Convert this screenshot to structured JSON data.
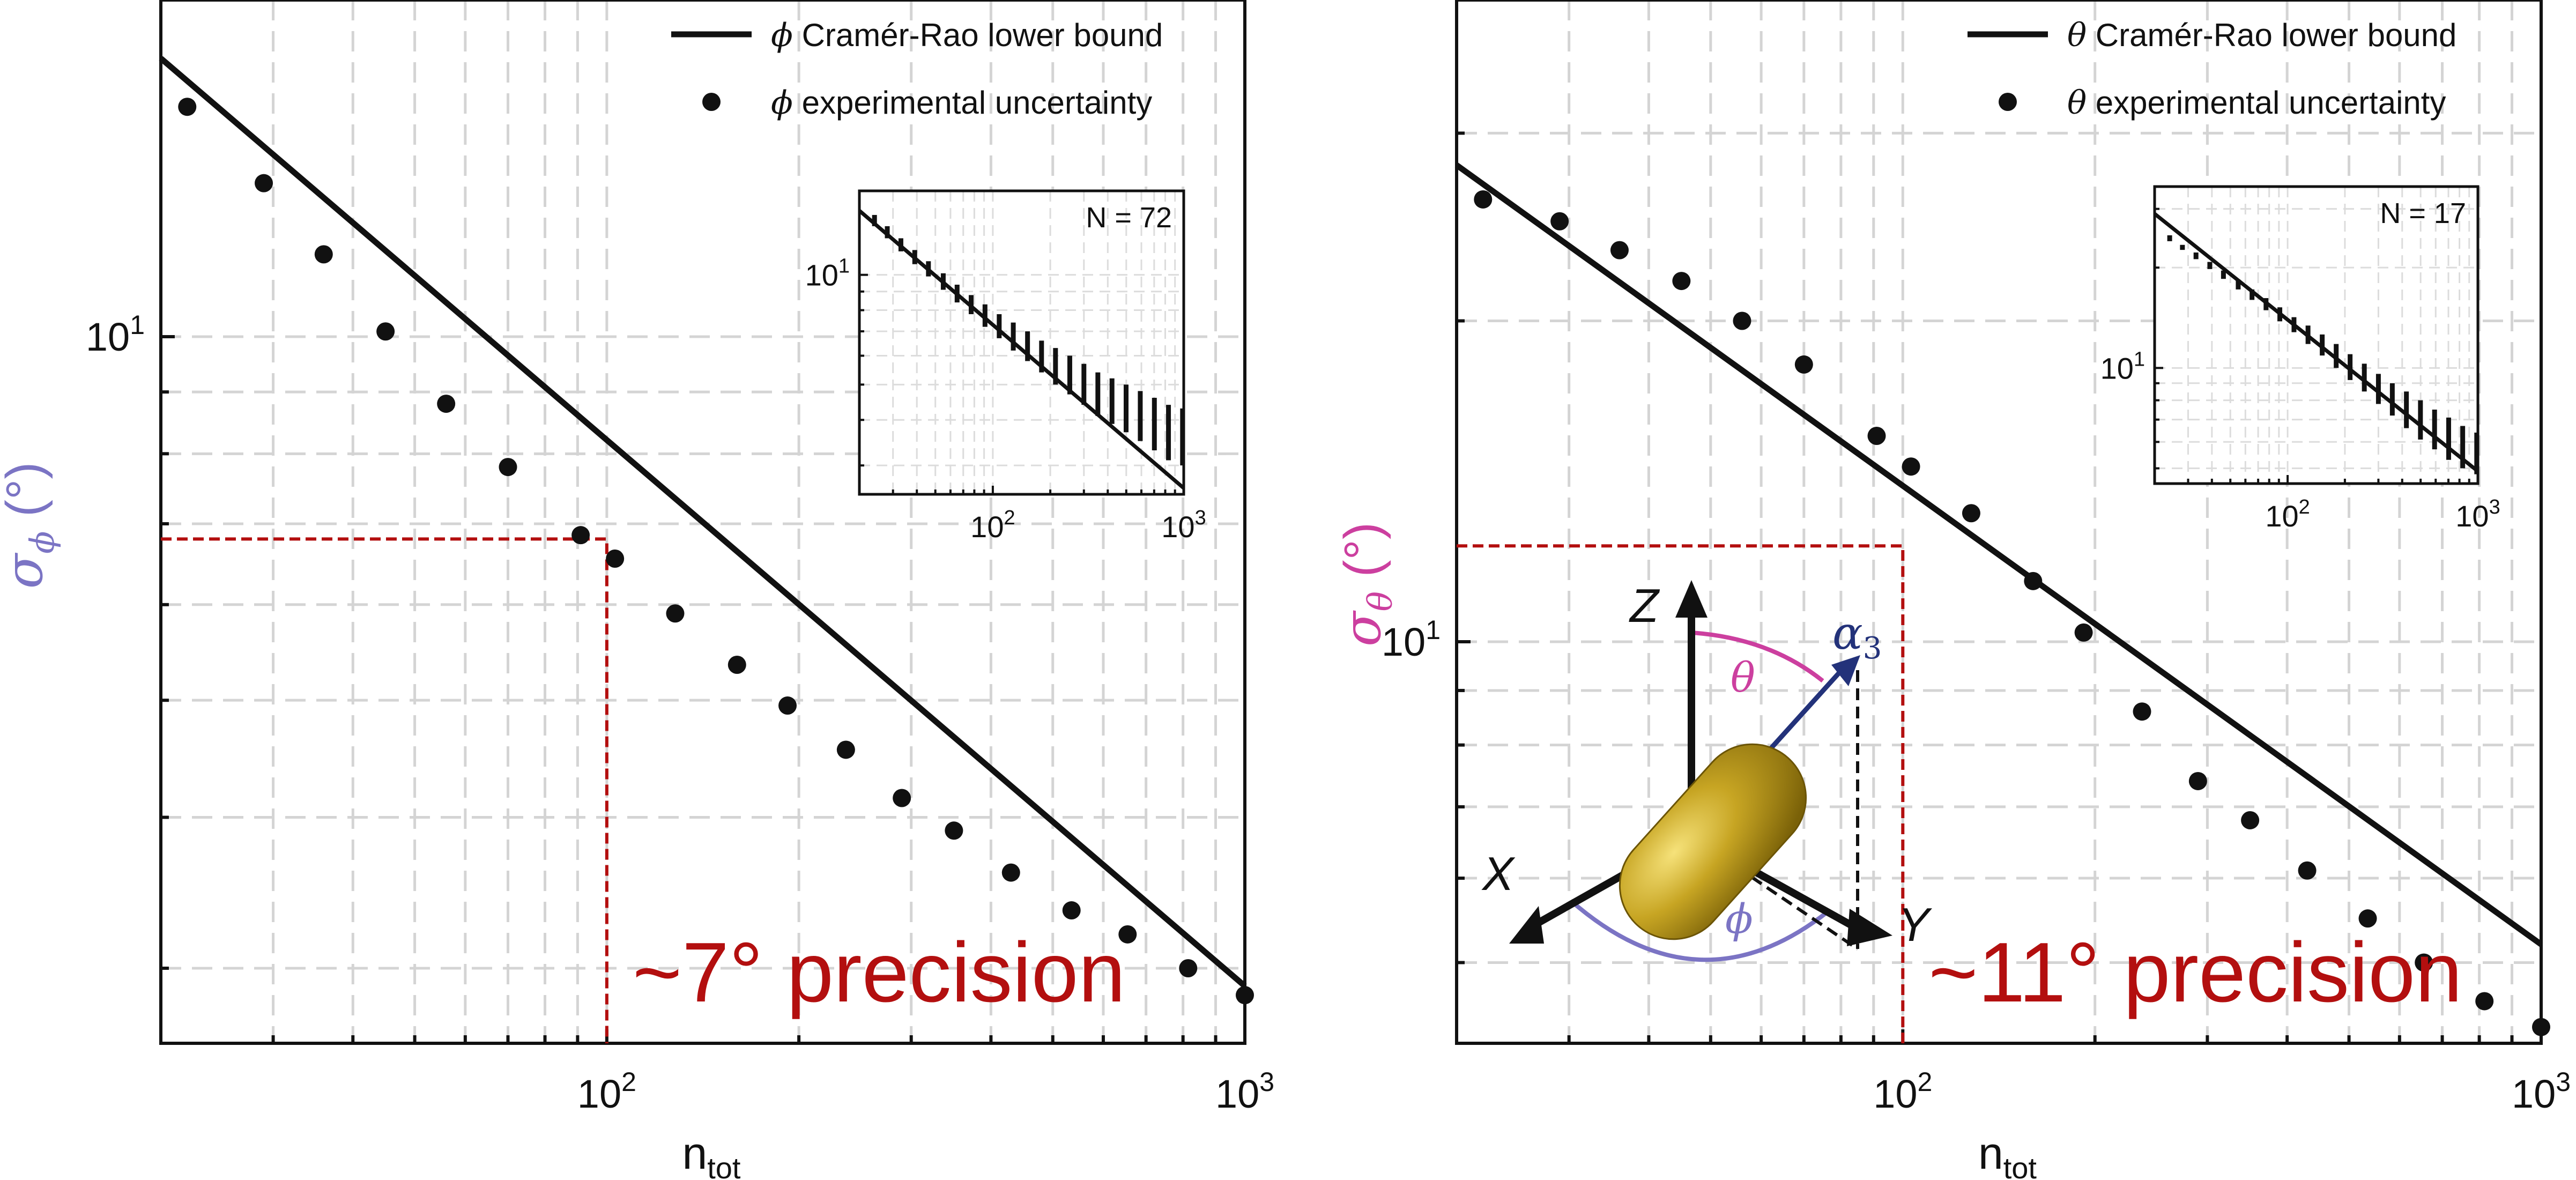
{
  "chart_data": [
    {
      "type": "line",
      "xlabel": "n",
      "xlabel_sub": "tot",
      "ylabel": "σ",
      "ylabel_sub": "ϕ",
      "ylabel_unit": "(°)",
      "ylabel_color": "#7b74c4",
      "xscale": "log",
      "yscale": "log",
      "xlim": [
        20,
        1000
      ],
      "ylim": [
        2.6,
        19
      ],
      "grid": true,
      "legend_position": "top-right",
      "x_ticks": [
        {
          "value": 100,
          "base": "10",
          "exp": "2"
        },
        {
          "value": 1000,
          "base": "10",
          "exp": "3"
        }
      ],
      "y_ticks": [
        {
          "value": 10,
          "base": "10",
          "exp": "1"
        }
      ],
      "series": [
        {
          "name": "ϕ Cramér-Rao lower bound",
          "symbol": "ϕ",
          "label_text": " Cramér-Rao lower bound",
          "kind": "line",
          "x": [
            20,
            1000
          ],
          "y": [
            17.0,
            2.9
          ]
        },
        {
          "name": "ϕ experimental uncertainty",
          "symbol": "ϕ",
          "label_text": " experimental uncertainty",
          "kind": "scatter",
          "x": [
            22,
            29,
            36,
            45,
            56,
            70,
            91,
            103,
            128,
            160,
            192,
            237,
            290,
            350,
            430,
            535,
            655,
            815,
            1000
          ],
          "y": [
            15.5,
            13.4,
            11.7,
            10.1,
            8.8,
            7.8,
            6.85,
            6.55,
            5.9,
            5.35,
            4.95,
            4.55,
            4.15,
            3.9,
            3.6,
            3.35,
            3.2,
            3.0,
            2.85
          ]
        }
      ],
      "annotation": {
        "text": "~7° precision",
        "color": "#b30f0f",
        "x": 100,
        "y": 6.8
      },
      "inset": {
        "label": "N = 72",
        "xlim": [
          20,
          1000
        ],
        "ylim": [
          2.5,
          17
        ],
        "x_ticks": [
          {
            "value": 100,
            "base": "10",
            "exp": "2"
          },
          {
            "value": 1000,
            "base": "10",
            "exp": "3"
          }
        ],
        "y_ticks": [
          {
            "value": 10,
            "base": "10",
            "exp": "1"
          }
        ],
        "bound": {
          "x": [
            20,
            1000
          ],
          "y": [
            15.0,
            2.6
          ]
        },
        "errorbars": [
          {
            "x": 24,
            "low": 13.6,
            "high": 14.6
          },
          {
            "x": 28,
            "low": 12.6,
            "high": 13.6
          },
          {
            "x": 33,
            "low": 11.6,
            "high": 12.6
          },
          {
            "x": 39,
            "low": 10.7,
            "high": 11.7
          },
          {
            "x": 46,
            "low": 9.9,
            "high": 10.9
          },
          {
            "x": 55,
            "low": 9.1,
            "high": 10.1
          },
          {
            "x": 65,
            "low": 8.4,
            "high": 9.4
          },
          {
            "x": 77,
            "low": 7.8,
            "high": 8.8
          },
          {
            "x": 91,
            "low": 7.2,
            "high": 8.3
          },
          {
            "x": 108,
            "low": 6.7,
            "high": 7.8
          },
          {
            "x": 128,
            "low": 6.2,
            "high": 7.4
          },
          {
            "x": 152,
            "low": 5.8,
            "high": 7.0
          },
          {
            "x": 180,
            "low": 5.4,
            "high": 6.6
          },
          {
            "x": 213,
            "low": 5.0,
            "high": 6.3
          },
          {
            "x": 253,
            "low": 4.7,
            "high": 6.0
          },
          {
            "x": 300,
            "low": 4.4,
            "high": 5.7
          },
          {
            "x": 355,
            "low": 4.1,
            "high": 5.4
          },
          {
            "x": 421,
            "low": 3.9,
            "high": 5.2
          },
          {
            "x": 499,
            "low": 3.7,
            "high": 5.0
          },
          {
            "x": 592,
            "low": 3.5,
            "high": 4.8
          },
          {
            "x": 702,
            "low": 3.3,
            "high": 4.6
          },
          {
            "x": 832,
            "low": 3.1,
            "high": 4.4
          },
          {
            "x": 986,
            "low": 3.0,
            "high": 4.3
          }
        ]
      }
    },
    {
      "type": "line",
      "xlabel": "n",
      "xlabel_sub": "tot",
      "ylabel": "σ",
      "ylabel_sub": "θ",
      "ylabel_unit": "(°)",
      "ylabel_color": "#cc3f9f",
      "xscale": "log",
      "yscale": "log",
      "xlim": [
        20,
        1000
      ],
      "ylim": [
        4.2,
        40
      ],
      "grid": true,
      "legend_position": "top-right",
      "x_ticks": [
        {
          "value": 100,
          "base": "10",
          "exp": "2"
        },
        {
          "value": 1000,
          "base": "10",
          "exp": "3"
        }
      ],
      "y_ticks": [
        {
          "value": 10,
          "base": "10",
          "exp": "1"
        }
      ],
      "series": [
        {
          "name": "θ Cramér-Rao lower bound",
          "symbol": "θ",
          "label_text": " Cramér-Rao lower bound",
          "kind": "line",
          "x": [
            20,
            1000
          ],
          "y": [
            28.0,
            5.2
          ]
        },
        {
          "name": "θ experimental uncertainty",
          "symbol": "θ",
          "label_text": " experimental uncertainty",
          "kind": "scatter",
          "x": [
            22,
            29,
            36,
            45,
            56,
            70,
            91,
            103,
            128,
            160,
            192,
            237,
            290,
            350,
            430,
            535,
            655,
            815,
            1000
          ],
          "y": [
            26.0,
            24.8,
            23.3,
            21.8,
            20.0,
            18.2,
            15.6,
            14.6,
            13.2,
            11.4,
            10.2,
            8.6,
            7.4,
            6.8,
            6.1,
            5.5,
            5.0,
            4.6,
            4.35
          ]
        }
      ],
      "annotation": {
        "text": "~11° precision",
        "color": "#b30f0f",
        "x": 100,
        "y": 12.3
      },
      "schematic": {
        "axis_labels": {
          "z": "Z",
          "x": "X",
          "y": "Y"
        },
        "vector_label": "α",
        "vector_sub": "3",
        "theta_label": "θ",
        "phi_label": "ϕ",
        "rod_color": "#b99a1f",
        "theta_color": "#cc3f9f",
        "phi_color": "#7b74c4",
        "vector_color": "#23327a"
      },
      "inset": {
        "label": "N = 17",
        "xlim": [
          20,
          1000
        ],
        "ylim": [
          4.5,
          35
        ],
        "x_ticks": [
          {
            "value": 100,
            "base": "10",
            "exp": "2"
          },
          {
            "value": 1000,
            "base": "10",
            "exp": "3"
          }
        ],
        "y_ticks": [
          {
            "value": 10,
            "base": "10",
            "exp": "1"
          }
        ],
        "bound": {
          "x": [
            20,
            1000
          ],
          "y": [
            29.0,
            4.9
          ]
        },
        "errorbars": [
          {
            "x": 24,
            "low": 24.0,
            "high": 25.0
          },
          {
            "x": 28,
            "low": 22.6,
            "high": 23.4
          },
          {
            "x": 33,
            "low": 21.2,
            "high": 22.2
          },
          {
            "x": 39,
            "low": 19.8,
            "high": 20.8
          },
          {
            "x": 46,
            "low": 18.5,
            "high": 19.6
          },
          {
            "x": 55,
            "low": 17.2,
            "high": 18.4
          },
          {
            "x": 65,
            "low": 16.0,
            "high": 17.2
          },
          {
            "x": 77,
            "low": 14.9,
            "high": 16.2
          },
          {
            "x": 91,
            "low": 13.8,
            "high": 15.2
          },
          {
            "x": 108,
            "low": 12.8,
            "high": 14.2
          },
          {
            "x": 128,
            "low": 11.8,
            "high": 13.4
          },
          {
            "x": 152,
            "low": 10.9,
            "high": 12.6
          },
          {
            "x": 180,
            "low": 10.0,
            "high": 11.8
          },
          {
            "x": 213,
            "low": 9.2,
            "high": 11.0
          },
          {
            "x": 253,
            "low": 8.5,
            "high": 10.3
          },
          {
            "x": 300,
            "low": 7.8,
            "high": 9.6
          },
          {
            "x": 355,
            "low": 7.2,
            "high": 9.0
          },
          {
            "x": 421,
            "low": 6.6,
            "high": 8.5
          },
          {
            "x": 499,
            "low": 6.1,
            "high": 8.0
          },
          {
            "x": 592,
            "low": 5.7,
            "high": 7.5
          },
          {
            "x": 702,
            "low": 5.3,
            "high": 7.1
          },
          {
            "x": 832,
            "low": 5.0,
            "high": 6.7
          },
          {
            "x": 986,
            "low": 4.8,
            "high": 6.4
          }
        ]
      }
    }
  ]
}
